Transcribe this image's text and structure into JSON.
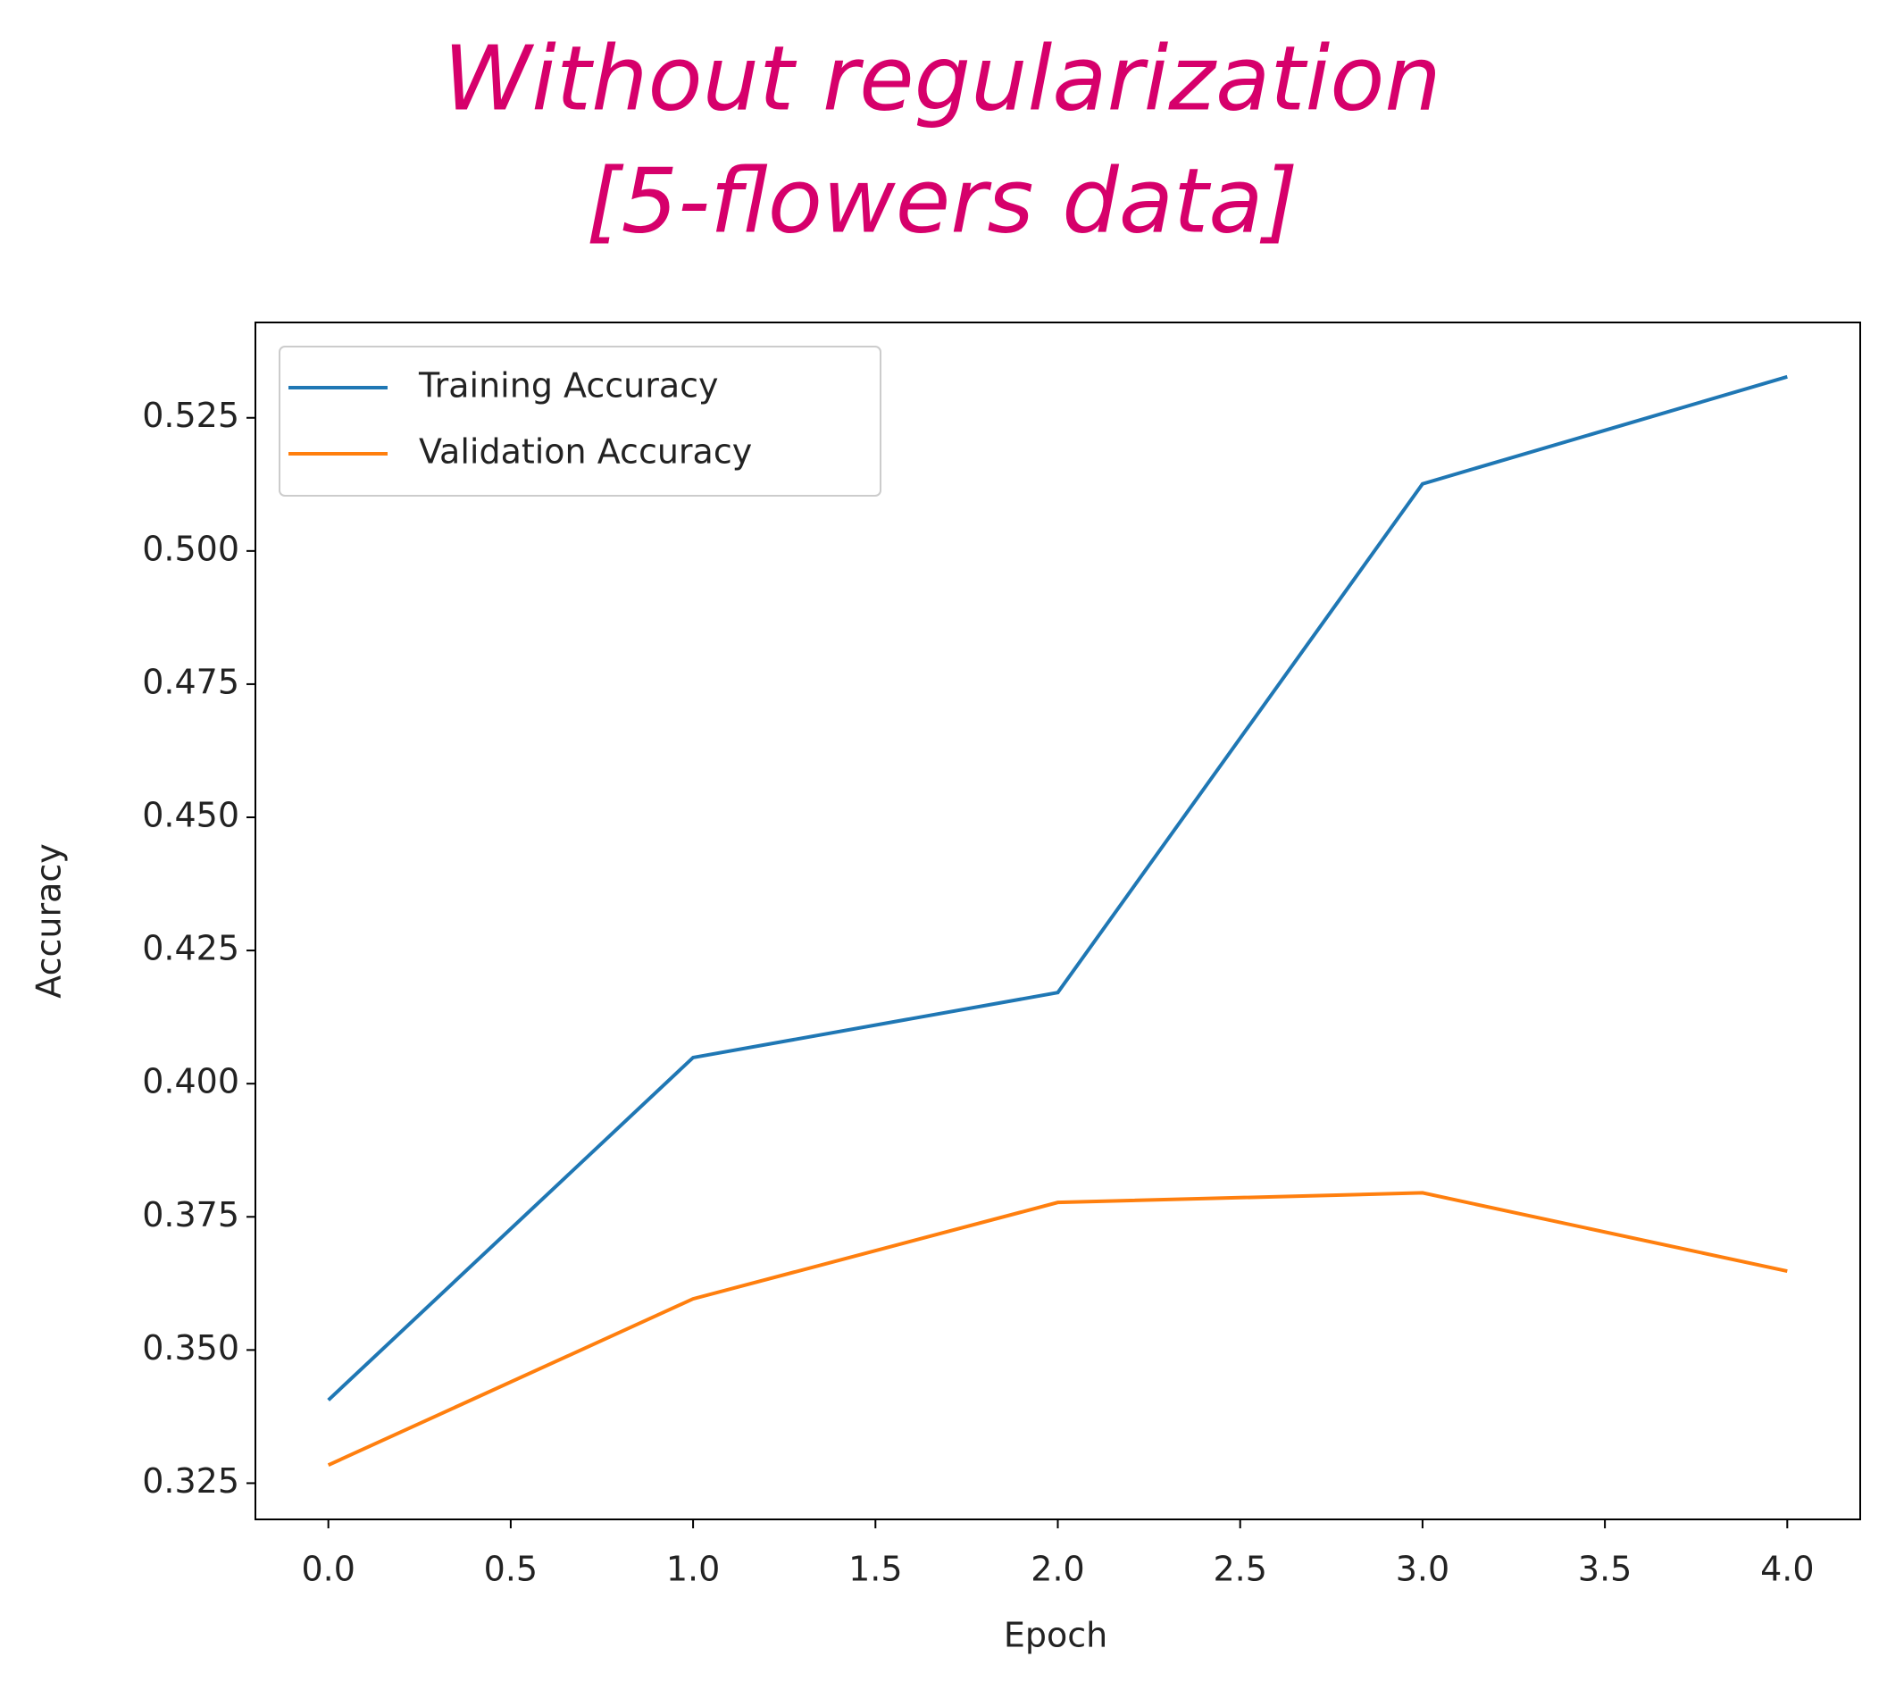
{
  "chart_data": {
    "type": "line",
    "title": [
      "Without regularization",
      "[5-flowers data]"
    ],
    "title_color": "#d6006b",
    "x_label": "Epoch",
    "y_label": "Accuracy",
    "x": [
      0,
      1,
      2,
      3,
      4
    ],
    "series": [
      {
        "name": "Training Accuracy",
        "color": "#1f77b4",
        "values": [
          0.3406,
          0.4049,
          0.4171,
          0.5126,
          0.5327
        ]
      },
      {
        "name": "Validation Accuracy",
        "color": "#ff7f0e",
        "values": [
          0.3284,
          0.3596,
          0.3777,
          0.3795,
          0.3648
        ]
      }
    ],
    "xlim": [
      -0.2,
      4.2
    ],
    "xticks": [
      {
        "value": 0,
        "label": "0.0"
      },
      0.5,
      {
        "value": 1,
        "label": "1.0"
      },
      1.5,
      {
        "value": 2,
        "label": "2.0"
      },
      2.5,
      {
        "value": 3,
        "label": "3.0"
      },
      3.5,
      {
        "value": 4,
        "label": "4.0"
      }
    ],
    "ylim": [
      0.3182,
      0.5429
    ],
    "yticks": [
      {
        "value": 0.325,
        "label": "0.325"
      },
      {
        "value": 0.35,
        "label": "0.350"
      },
      {
        "value": 0.375,
        "label": "0.375"
      },
      {
        "value": 0.4,
        "label": "0.400"
      },
      {
        "value": 0.425,
        "label": "0.425"
      },
      {
        "value": 0.45,
        "label": "0.450"
      },
      {
        "value": 0.475,
        "label": "0.475"
      },
      {
        "value": 0.5,
        "label": "0.500"
      },
      {
        "value": 0.525,
        "label": "0.525"
      }
    ],
    "legend": "upper left",
    "grid": false
  }
}
